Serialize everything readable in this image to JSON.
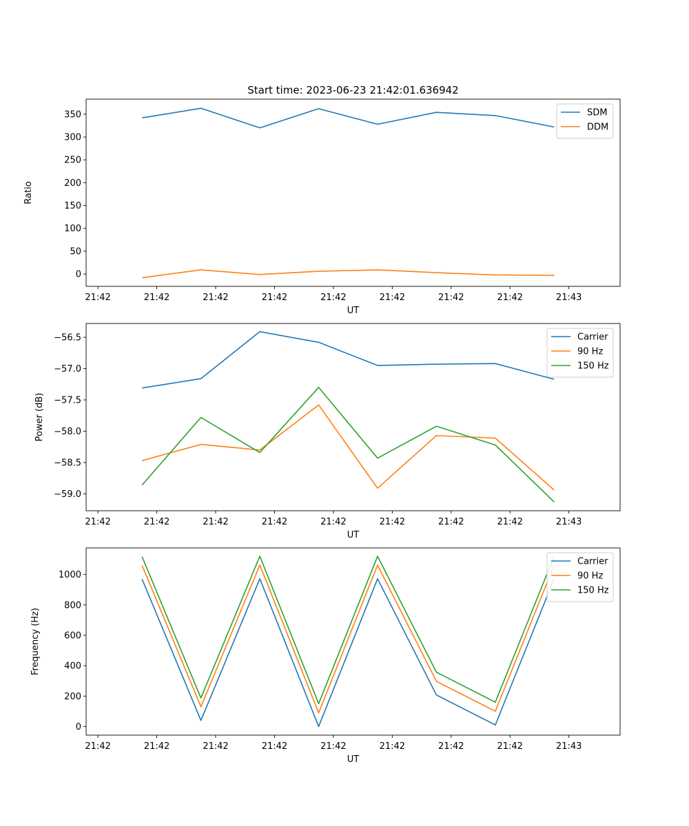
{
  "figure": {
    "title": "Start time: 2023-06-23 21:42:01.636942"
  },
  "colors": {
    "blue": "#1f77b4",
    "orange": "#ff7f0e",
    "green": "#2ca02c"
  },
  "chart_data": [
    {
      "type": "line",
      "title": "Start time: 2023-06-23 21:42:01.636942",
      "xlabel": "UT",
      "ylabel": "Ratio",
      "xlim": [
        0,
        9.07
      ],
      "ylim": [
        -27,
        383
      ],
      "xticks": [
        0.2,
        1.2,
        2.2,
        3.2,
        4.2,
        5.2,
        6.2,
        7.2,
        8.2
      ],
      "xtick_labels": [
        "21:42",
        "21:42",
        "21:42",
        "21:42",
        "21:42",
        "21:42",
        "21:42",
        "21:42",
        "21:43"
      ],
      "yticks": [
        0,
        50,
        100,
        150,
        200,
        250,
        300,
        350
      ],
      "ytick_labels": [
        "0",
        "50",
        "100",
        "150",
        "200",
        "250",
        "300",
        "350"
      ],
      "legend": "top-right",
      "x": [
        0.95,
        1.95,
        2.95,
        3.95,
        4.95,
        5.95,
        6.95,
        7.95
      ],
      "series": [
        {
          "name": "SDM",
          "color": "blue",
          "values": [
            342,
            363,
            320,
            362,
            328,
            354,
            347,
            322
          ]
        },
        {
          "name": "DDM",
          "color": "orange",
          "values": [
            -8,
            9,
            -1,
            6,
            9,
            3,
            -2,
            -3
          ]
        }
      ]
    },
    {
      "type": "line",
      "xlabel": "UT",
      "ylabel": "Power (dB)",
      "xlim": [
        0,
        9.07
      ],
      "ylim": [
        -59.27,
        -56.28
      ],
      "xticks": [
        0.2,
        1.2,
        2.2,
        3.2,
        4.2,
        5.2,
        6.2,
        7.2,
        8.2
      ],
      "xtick_labels": [
        "21:42",
        "21:42",
        "21:42",
        "21:42",
        "21:42",
        "21:42",
        "21:42",
        "21:42",
        "21:43"
      ],
      "yticks": [
        -59.0,
        -58.5,
        -58.0,
        -57.5,
        -57.0,
        -56.5
      ],
      "ytick_labels": [
        "−59.0",
        "−58.5",
        "−58.0",
        "−57.5",
        "−57.0",
        "−56.5"
      ],
      "legend": "top-right",
      "x": [
        0.95,
        1.95,
        2.95,
        3.95,
        4.95,
        5.95,
        6.95,
        7.95
      ],
      "series": [
        {
          "name": "Carrier",
          "color": "blue",
          "values": [
            -57.31,
            -57.16,
            -56.41,
            -56.58,
            -56.95,
            -56.93,
            -56.92,
            -57.17
          ]
        },
        {
          "name": "90 Hz",
          "color": "orange",
          "values": [
            -58.47,
            -58.21,
            -58.3,
            -57.58,
            -58.91,
            -58.07,
            -58.11,
            -58.94
          ]
        },
        {
          "name": "150 Hz",
          "color": "green",
          "values": [
            -58.86,
            -57.78,
            -58.34,
            -57.3,
            -58.43,
            -57.92,
            -58.22,
            -59.13
          ]
        }
      ]
    },
    {
      "type": "line",
      "xlabel": "UT",
      "ylabel": "Frequency (Hz)",
      "xlim": [
        0,
        9.07
      ],
      "ylim": [
        -57,
        1175
      ],
      "xticks": [
        0.2,
        1.2,
        2.2,
        3.2,
        4.2,
        5.2,
        6.2,
        7.2,
        8.2
      ],
      "xtick_labels": [
        "21:42",
        "21:42",
        "21:42",
        "21:42",
        "21:42",
        "21:42",
        "21:42",
        "21:42",
        "21:43"
      ],
      "yticks": [
        0,
        200,
        400,
        600,
        800,
        1000
      ],
      "ytick_labels": [
        "0",
        "200",
        "400",
        "600",
        "800",
        "1000"
      ],
      "legend": "top-right",
      "x": [
        0.95,
        1.95,
        2.95,
        3.95,
        4.95,
        5.95,
        6.95,
        7.95
      ],
      "series": [
        {
          "name": "Carrier",
          "color": "blue",
          "values": [
            970,
            40,
            972,
            0,
            972,
            207,
            10,
            972
          ]
        },
        {
          "name": "90 Hz",
          "color": "orange",
          "values": [
            1060,
            130,
            1062,
            90,
            1062,
            297,
            100,
            1062
          ]
        },
        {
          "name": "150 Hz",
          "color": "green",
          "values": [
            1117,
            187,
            1120,
            150,
            1120,
            357,
            160,
            1120
          ]
        }
      ]
    }
  ]
}
